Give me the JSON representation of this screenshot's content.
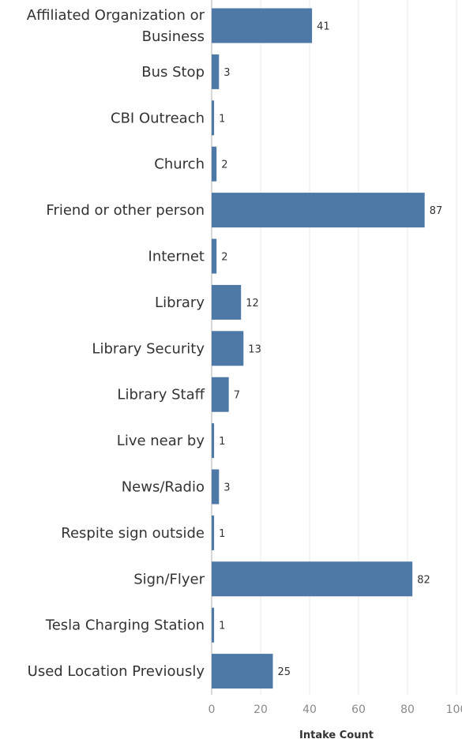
{
  "chart_data": {
    "type": "bar",
    "orientation": "horizontal",
    "categories": [
      [
        "Affiliated Organization or",
        "Business"
      ],
      [
        "Bus Stop"
      ],
      [
        "CBI Outreach"
      ],
      [
        "Church"
      ],
      [
        "Friend or other person"
      ],
      [
        "Internet"
      ],
      [
        "Library"
      ],
      [
        "Library Security"
      ],
      [
        "Library Staff"
      ],
      [
        "Live near by"
      ],
      [
        "News/Radio"
      ],
      [
        "Respite sign outside"
      ],
      [
        "Sign/Flyer"
      ],
      [
        "Tesla Charging Station"
      ],
      [
        "Used Location Previously"
      ]
    ],
    "values": [
      41,
      3,
      1,
      2,
      87,
      2,
      12,
      13,
      7,
      1,
      3,
      1,
      82,
      1,
      25
    ],
    "xlabel": "Intake Count",
    "xlim": [
      0,
      100
    ],
    "xticks": [
      0,
      20,
      40,
      60,
      80,
      100
    ],
    "grid": true,
    "bar_color": "#4e79a7",
    "grid_color": "#ebebeb"
  }
}
